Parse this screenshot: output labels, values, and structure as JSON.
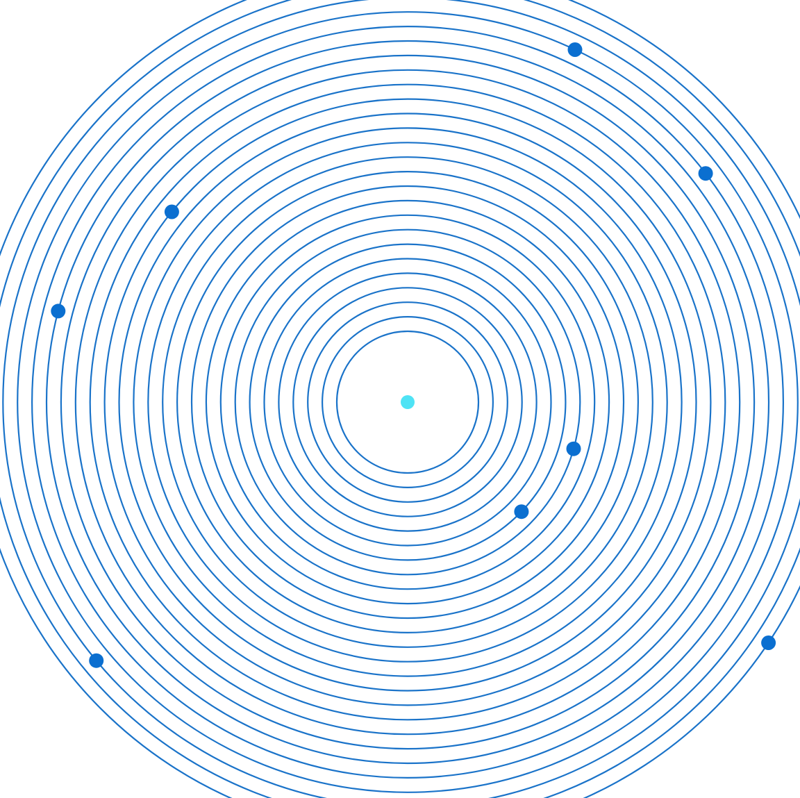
{
  "diagram": {
    "ring_count": 26,
    "colors": {
      "ring": "#1a73c9",
      "body": "#0b6fd0",
      "center": "#4fe3f5",
      "background": "#ffffff"
    },
    "center_marker": {
      "color": "#4fe3f5"
    },
    "bodies": [
      {
        "id": "planet-1",
        "ring": 22,
        "angle_deg": -64.6
      },
      {
        "id": "planet-2",
        "ring": 21,
        "angle_deg": -37.5
      },
      {
        "id": "planet-3",
        "ring": 16,
        "angle_deg": -141.1
      },
      {
        "id": "planet-4",
        "ring": 20,
        "angle_deg": -165.4
      },
      {
        "id": "planet-5",
        "ring": 7,
        "angle_deg": 15.7
      },
      {
        "id": "planet-6",
        "ring": 6,
        "angle_deg": 43.9
      },
      {
        "id": "planet-7",
        "ring": 23,
        "angle_deg": 140.3
      },
      {
        "id": "planet-8",
        "ring": 25,
        "angle_deg": 33.7
      }
    ]
  }
}
